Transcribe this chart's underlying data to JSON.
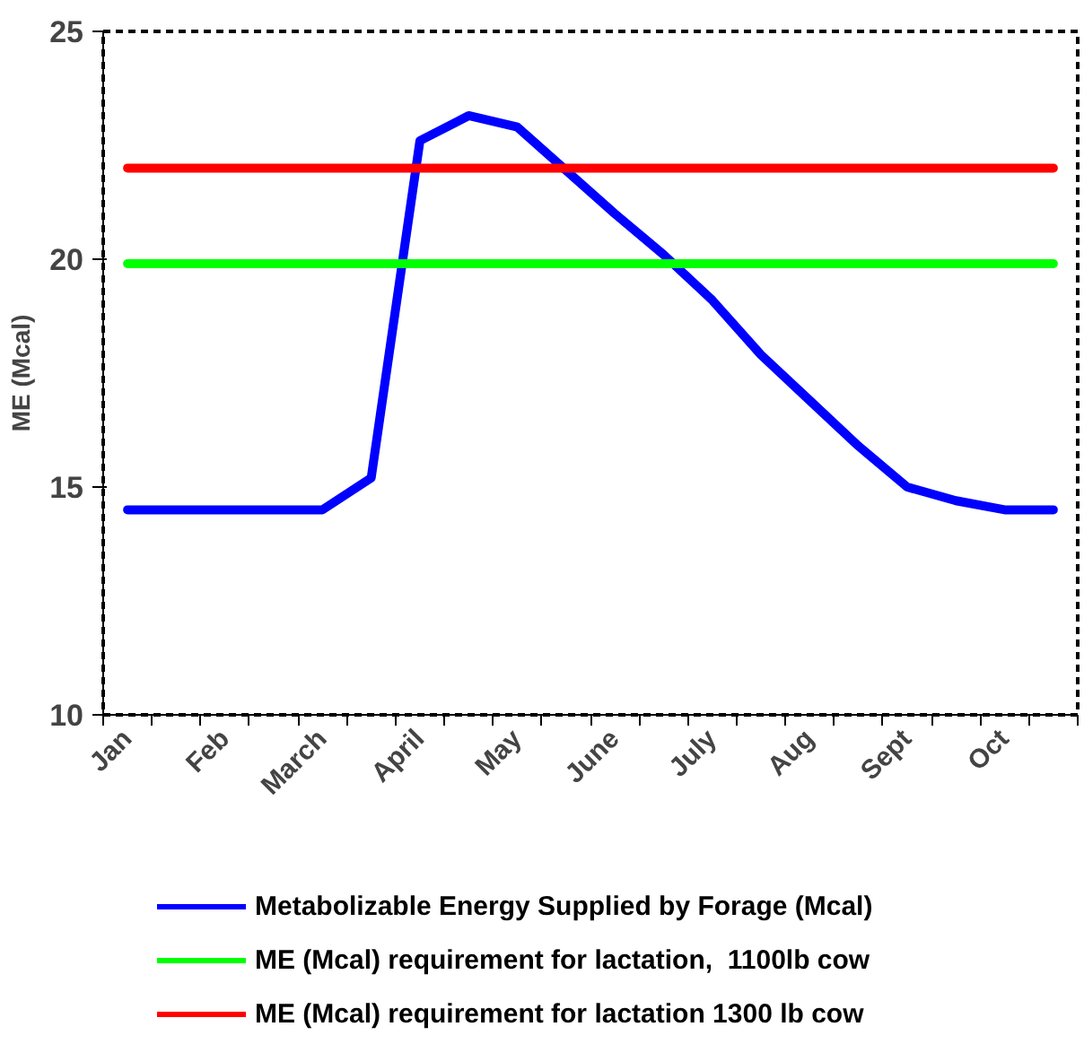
{
  "chart_data": {
    "type": "line",
    "ylabel": "ME (Mcal)",
    "categories": [
      "Jan",
      null,
      "Feb",
      null,
      "March",
      null,
      "April",
      null,
      "May",
      null,
      "June",
      null,
      "July",
      null,
      "Aug",
      null,
      "Sept",
      null,
      "Oct",
      null
    ],
    "series": [
      {
        "name": "Metabolizable Energy Supplied by Forage (Mcal)",
        "color": "#0000ff",
        "values": [
          14.5,
          14.5,
          14.5,
          14.5,
          14.5,
          15.2,
          22.6,
          23.15,
          22.9,
          21.95,
          21.0,
          20.1,
          19.1,
          17.9,
          16.9,
          15.9,
          15.0,
          14.7,
          14.5,
          14.5
        ]
      },
      {
        "name": "ME (Mcal) requirement for lactation,  1100lb cow",
        "color": "#00ff00",
        "values": [
          19.9,
          19.9,
          19.9,
          19.9,
          19.9,
          19.9,
          19.9,
          19.9,
          19.9,
          19.9,
          19.9,
          19.9,
          19.9,
          19.9,
          19.9,
          19.9,
          19.9,
          19.9,
          19.9,
          19.9
        ]
      },
      {
        "name": "ME (Mcal) requirement for lactation 1300 lb cow",
        "color": "#ff0000",
        "values": [
          22,
          22,
          22,
          22,
          22,
          22,
          22,
          22,
          22,
          22,
          22,
          22,
          22,
          22,
          22,
          22,
          22,
          22,
          22,
          22
        ]
      }
    ],
    "ylim": [
      10,
      25
    ],
    "yticks": [
      10,
      15,
      20,
      25
    ],
    "grid": false,
    "legend": "bottom",
    "marker": "none",
    "line_style": "solid"
  }
}
